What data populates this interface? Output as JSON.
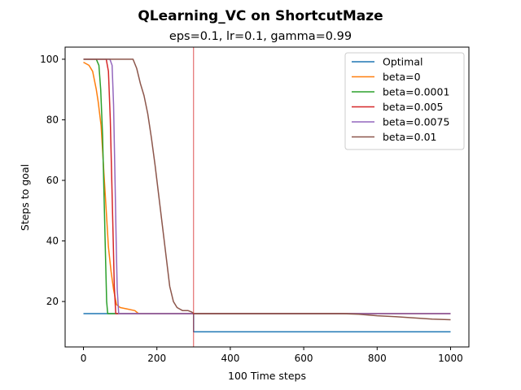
{
  "chart_data": {
    "type": "line",
    "title": "QLearning_VC on ShortcutMaze",
    "subtitle": "eps=0.1, lr=0.1, gamma=0.99",
    "xlabel": "100 Time steps",
    "ylabel": "Steps to goal",
    "xlim": [
      -50,
      1050
    ],
    "ylim": [
      5,
      104
    ],
    "xticks": [
      0,
      200,
      400,
      600,
      800,
      1000
    ],
    "yticks": [
      20,
      40,
      60,
      80,
      100
    ],
    "xtick_labels": [
      "0",
      "200",
      "400",
      "600",
      "800",
      "1000"
    ],
    "ytick_labels": [
      "20",
      "40",
      "60",
      "80",
      "100"
    ],
    "grid": false,
    "legend_position": "upper-right",
    "vline": {
      "x": 300,
      "color": "#d62728"
    },
    "series": [
      {
        "name": "Optimal",
        "color": "#1f77b4",
        "points": [
          [
            0,
            16
          ],
          [
            300,
            16
          ],
          [
            300,
            10
          ],
          [
            1000,
            10
          ]
        ]
      },
      {
        "name": "beta=0",
        "color": "#ff7f0e",
        "points": [
          [
            0,
            99
          ],
          [
            15,
            98
          ],
          [
            25,
            96
          ],
          [
            35,
            90
          ],
          [
            40,
            86
          ],
          [
            48,
            78
          ],
          [
            55,
            64
          ],
          [
            62,
            50
          ],
          [
            68,
            38
          ],
          [
            75,
            30
          ],
          [
            82,
            24
          ],
          [
            90,
            19
          ],
          [
            100,
            18
          ],
          [
            120,
            17.5
          ],
          [
            140,
            17
          ],
          [
            150,
            16
          ],
          [
            300,
            16
          ],
          [
            1000,
            16
          ]
        ]
      },
      {
        "name": "beta=0.0001",
        "color": "#2ca02c",
        "points": [
          [
            0,
            100
          ],
          [
            35,
            100
          ],
          [
            42,
            98
          ],
          [
            47,
            90
          ],
          [
            52,
            75
          ],
          [
            56,
            55
          ],
          [
            60,
            35
          ],
          [
            63,
            20
          ],
          [
            66,
            16
          ],
          [
            1000,
            16
          ]
        ]
      },
      {
        "name": "beta=0.005",
        "color": "#d62728",
        "points": [
          [
            0,
            100
          ],
          [
            62,
            100
          ],
          [
            68,
            96
          ],
          [
            73,
            80
          ],
          [
            77,
            60
          ],
          [
            81,
            40
          ],
          [
            84,
            25
          ],
          [
            88,
            16
          ],
          [
            1000,
            16
          ]
        ]
      },
      {
        "name": "beta=0.0075",
        "color": "#9467bd",
        "points": [
          [
            0,
            100
          ],
          [
            72,
            100
          ],
          [
            78,
            98
          ],
          [
            82,
            85
          ],
          [
            86,
            60
          ],
          [
            89,
            40
          ],
          [
            92,
            24
          ],
          [
            96,
            16
          ],
          [
            1000,
            16
          ]
        ]
      },
      {
        "name": "beta=0.01",
        "color": "#8c564b",
        "points": [
          [
            0,
            100
          ],
          [
            135,
            100
          ],
          [
            145,
            97
          ],
          [
            155,
            92
          ],
          [
            165,
            88
          ],
          [
            175,
            82
          ],
          [
            185,
            74
          ],
          [
            195,
            65
          ],
          [
            205,
            55
          ],
          [
            215,
            45
          ],
          [
            225,
            35
          ],
          [
            235,
            25
          ],
          [
            245,
            20
          ],
          [
            255,
            18
          ],
          [
            270,
            17
          ],
          [
            285,
            17
          ],
          [
            295,
            16.5
          ],
          [
            300,
            16
          ],
          [
            600,
            16
          ],
          [
            700,
            16
          ],
          [
            750,
            15.8
          ],
          [
            800,
            15.3
          ],
          [
            850,
            15
          ],
          [
            900,
            14.6
          ],
          [
            950,
            14.2
          ],
          [
            1000,
            14
          ]
        ]
      }
    ]
  }
}
